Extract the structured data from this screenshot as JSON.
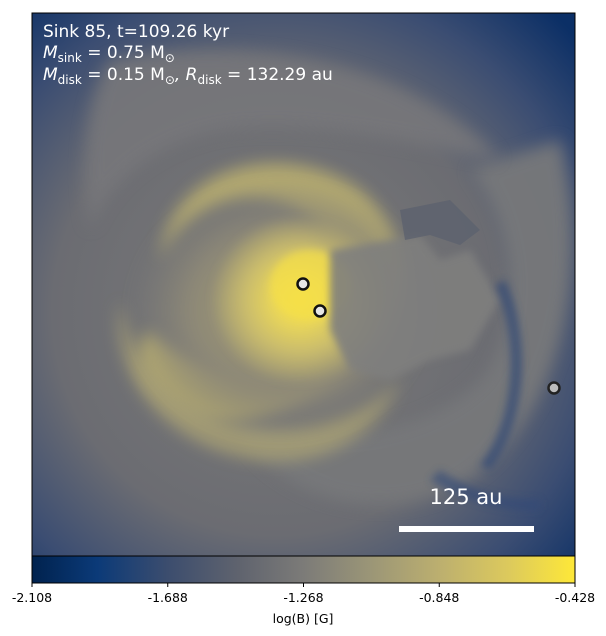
{
  "panel": {
    "title_line1": "Sink 85, t=109.26 kyr",
    "title_line2_sym": "M",
    "title_line2_sub": "sink",
    "title_line2_rest": " = 0.75 M",
    "title_line2_sun": "⊙",
    "title_line3_sym": "M",
    "title_line3_sub": "disk",
    "title_line3_mid": " = 0.15 M",
    "title_line3_sun": "⊙",
    "title_line3_r": ", R",
    "title_line3_rsub": "disk",
    "title_line3_end": " = 132.29 au",
    "scalebar_label": "125 au"
  },
  "colorbar": {
    "label": "log(B) [G]",
    "ticks": [
      "-2.108",
      "-1.688",
      "-1.268",
      "-0.848",
      "-0.428"
    ],
    "range": [
      -2.108,
      -0.428
    ],
    "colormap": "cividis",
    "colors": {
      "low": "#00224e",
      "mid": "#7c7b78",
      "high": "#fee838"
    }
  },
  "sinks": [
    {
      "name": "sink-primary"
    },
    {
      "name": "sink-secondary"
    },
    {
      "name": "sink-edge"
    }
  ]
}
